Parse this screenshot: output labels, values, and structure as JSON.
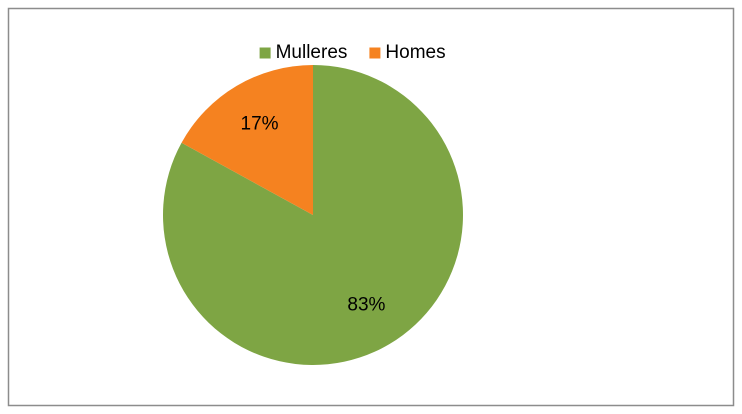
{
  "chart_data": {
    "type": "pie",
    "categories": [
      "Mulleres",
      "Homes"
    ],
    "values": [
      83,
      17
    ],
    "value_labels": [
      "83%",
      "17%"
    ],
    "colors": [
      "#7ea544",
      "#f58220"
    ],
    "legend": "top"
  }
}
